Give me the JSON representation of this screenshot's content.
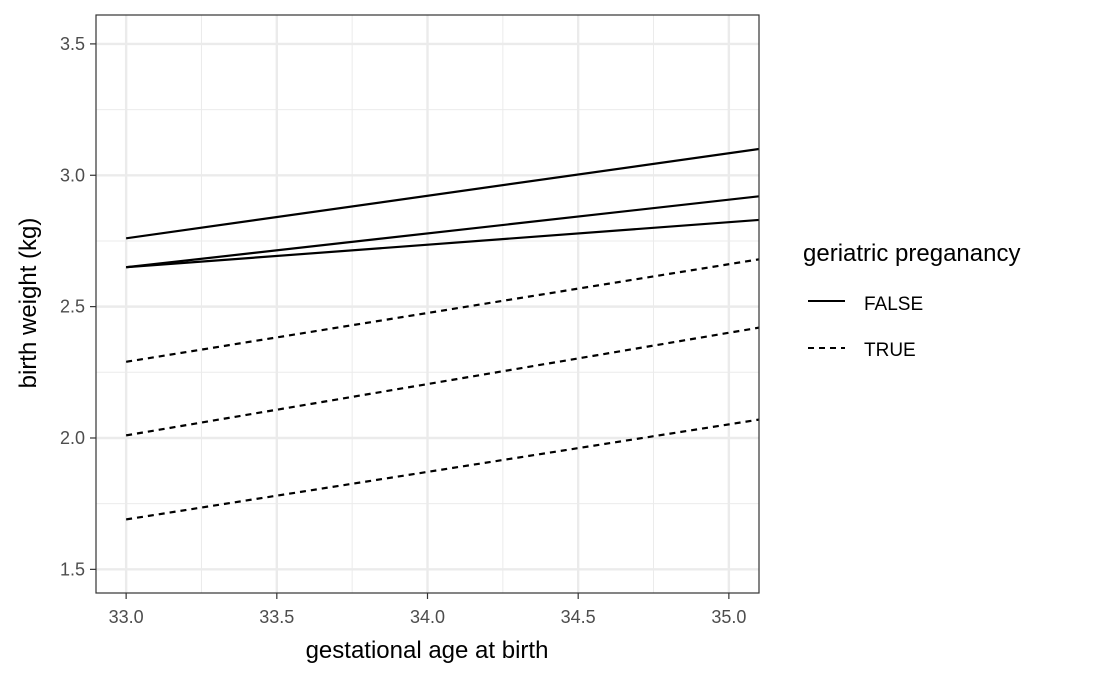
{
  "chart_data": {
    "type": "line",
    "title": "",
    "xlabel": "gestational age at birth",
    "ylabel": "birth weight (kg)",
    "xlim": [
      32.9,
      35.1
    ],
    "ylim": [
      1.41,
      3.61
    ],
    "x_ticks": [
      33.0,
      33.5,
      34.0,
      34.5,
      35.0
    ],
    "x_tick_labels": [
      "33.0",
      "33.5",
      "34.0",
      "34.5",
      "35.0"
    ],
    "y_ticks": [
      1.5,
      2.0,
      2.5,
      3.0,
      3.5
    ],
    "y_tick_labels": [
      "1.5",
      "2.0",
      "2.5",
      "3.0",
      "3.5"
    ],
    "grid": true,
    "legend": {
      "title": "geriatric preganancy",
      "placement": "right",
      "entries": [
        {
          "label": "FALSE",
          "linetype": "solid"
        },
        {
          "label": "TRUE",
          "linetype": "dashed"
        }
      ]
    },
    "lines": [
      {
        "group": "FALSE",
        "linetype": "solid",
        "x": [
          33.0,
          35.1
        ],
        "y": [
          2.76,
          3.1
        ]
      },
      {
        "group": "FALSE",
        "linetype": "solid",
        "x": [
          33.0,
          35.1
        ],
        "y": [
          2.65,
          2.92
        ]
      },
      {
        "group": "FALSE",
        "linetype": "solid",
        "x": [
          33.0,
          35.1
        ],
        "y": [
          2.65,
          2.83
        ]
      },
      {
        "group": "TRUE",
        "linetype": "dashed",
        "x": [
          33.0,
          35.1
        ],
        "y": [
          2.29,
          2.68
        ]
      },
      {
        "group": "TRUE",
        "linetype": "dashed",
        "x": [
          33.0,
          35.1
        ],
        "y": [
          2.01,
          2.42
        ]
      },
      {
        "group": "TRUE",
        "linetype": "dashed",
        "x": [
          33.0,
          35.1
        ],
        "y": [
          1.69,
          2.07
        ]
      }
    ],
    "colors": {
      "line": "#000000",
      "grid": "#ebebeb",
      "panel_border": "#333333",
      "tick_text": "#4d4d4d"
    }
  }
}
